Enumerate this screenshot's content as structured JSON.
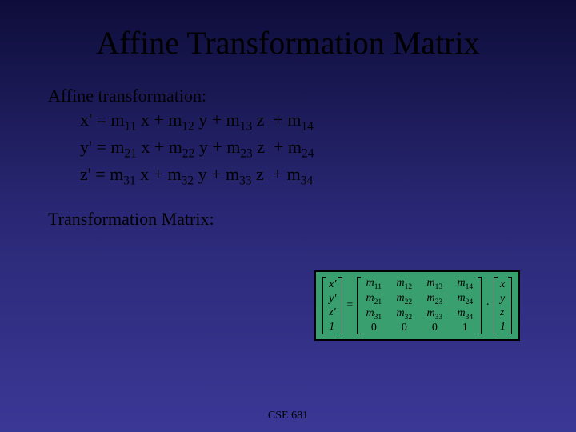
{
  "title": "Affine Transformation Matrix",
  "section_label": "Affine transformation:",
  "equations": {
    "line1_lhs": "x'",
    "line2_lhs": "y'",
    "line3_lhs": "z'",
    "m11": "11",
    "m12": "12",
    "m13": "13",
    "m14": "14",
    "m21": "21",
    "m22": "22",
    "m23": "23",
    "m24": "24",
    "m31": "31",
    "m32": "32",
    "m33": "33",
    "m34": "34"
  },
  "matrix_label": "Transformation Matrix:",
  "matrix_box": {
    "result_vec": [
      "x'",
      "y'",
      "z'",
      "1"
    ],
    "input_vec": [
      "x",
      "y",
      "z",
      "1"
    ],
    "rows": [
      [
        "m11",
        "m12",
        "m13",
        "m14"
      ],
      [
        "m21",
        "m22",
        "m23",
        "m24"
      ],
      [
        "m31",
        "m32",
        "m33",
        "m34"
      ],
      [
        "0",
        "0",
        "0",
        "1"
      ]
    ],
    "background": "#3a9f6f"
  },
  "footer": "CSE 681",
  "colors": {
    "bg_top": "#0e0d3a",
    "bg_bottom": "#3a3895",
    "text": "#000000"
  }
}
